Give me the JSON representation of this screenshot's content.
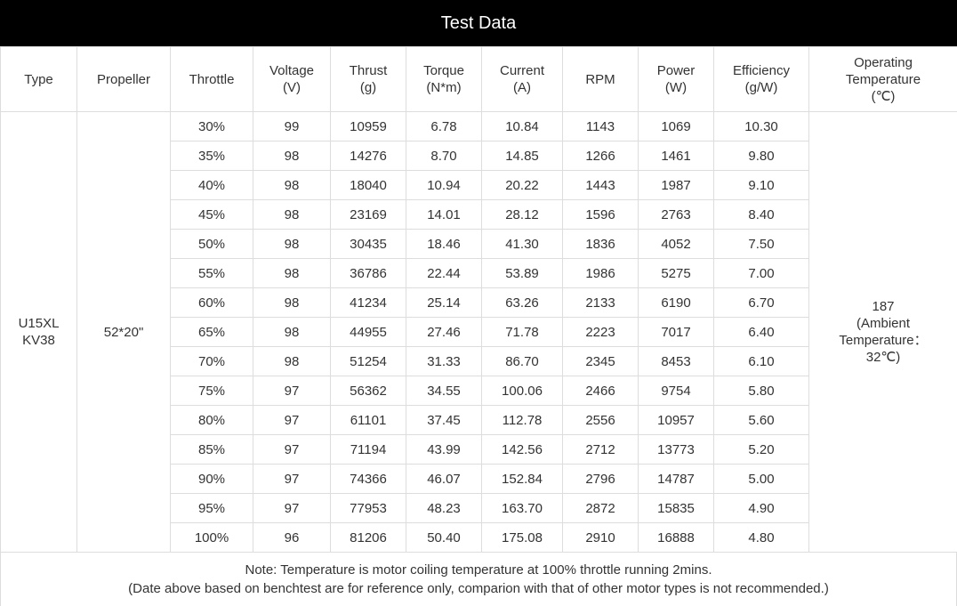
{
  "title": "Test Data",
  "headers": [
    [
      "Type"
    ],
    [
      "Propeller"
    ],
    [
      "Throttle"
    ],
    [
      "Voltage",
      "(V)"
    ],
    [
      "Thrust",
      "(g)"
    ],
    [
      "Torque",
      "(N*m)"
    ],
    [
      "Current",
      "(A)"
    ],
    [
      "RPM"
    ],
    [
      "Power",
      "(W)"
    ],
    [
      "Efficiency",
      "(g/W)"
    ],
    [
      "Operating",
      "Temperature",
      "(℃)"
    ]
  ],
  "type": [
    "U15XL",
    "KV38"
  ],
  "propeller": "52*20\"",
  "temperature": [
    "187",
    "(Ambient",
    "Temperature：",
    "32℃)"
  ],
  "rows": [
    [
      "30%",
      "99",
      "10959",
      "6.78",
      "10.84",
      "1143",
      "1069",
      "10.30"
    ],
    [
      "35%",
      "98",
      "14276",
      "8.70",
      "14.85",
      "1266",
      "1461",
      "9.80"
    ],
    [
      "40%",
      "98",
      "18040",
      "10.94",
      "20.22",
      "1443",
      "1987",
      "9.10"
    ],
    [
      "45%",
      "98",
      "23169",
      "14.01",
      "28.12",
      "1596",
      "2763",
      "8.40"
    ],
    [
      "50%",
      "98",
      "30435",
      "18.46",
      "41.30",
      "1836",
      "4052",
      "7.50"
    ],
    [
      "55%",
      "98",
      "36786",
      "22.44",
      "53.89",
      "1986",
      "5275",
      "7.00"
    ],
    [
      "60%",
      "98",
      "41234",
      "25.14",
      "63.26",
      "2133",
      "6190",
      "6.70"
    ],
    [
      "65%",
      "98",
      "44955",
      "27.46",
      "71.78",
      "2223",
      "7017",
      "6.40"
    ],
    [
      "70%",
      "98",
      "51254",
      "31.33",
      "86.70",
      "2345",
      "8453",
      "6.10"
    ],
    [
      "75%",
      "97",
      "56362",
      "34.55",
      "100.06",
      "2466",
      "9754",
      "5.80"
    ],
    [
      "80%",
      "97",
      "61101",
      "37.45",
      "112.78",
      "2556",
      "10957",
      "5.60"
    ],
    [
      "85%",
      "97",
      "71194",
      "43.99",
      "142.56",
      "2712",
      "13773",
      "5.20"
    ],
    [
      "90%",
      "97",
      "74366",
      "46.07",
      "152.84",
      "2796",
      "14787",
      "5.00"
    ],
    [
      "95%",
      "97",
      "77953",
      "48.23",
      "163.70",
      "2872",
      "15835",
      "4.90"
    ],
    [
      "100%",
      "96",
      "81206",
      "50.40",
      "175.08",
      "2910",
      "16888",
      "4.80"
    ]
  ],
  "note": [
    "Note: Temperature is motor coiling temperature at 100% throttle running 2mins.",
    "(Date above based on benchtest are for reference only, comparion with that of other motor types is not recommended.)"
  ]
}
